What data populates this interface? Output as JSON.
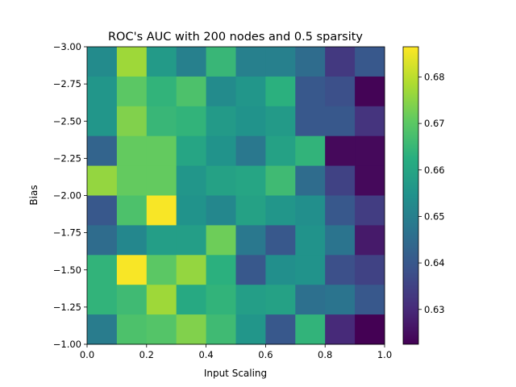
{
  "chart_data": {
    "type": "heatmap",
    "title": "ROC's AUC with 200 nodes and 0.5 sparsity",
    "xlabel": "Input Scaling",
    "ylabel": "Bias",
    "xlim": [
      0.0,
      1.0
    ],
    "ylim": [
      -1.0,
      -3.0
    ],
    "x_ticks": [
      "0.0",
      "0.2",
      "0.4",
      "0.6",
      "0.8",
      "1.0"
    ],
    "y_ticks": [
      "−3.00",
      "−2.75",
      "−2.50",
      "−2.25",
      "−2.00",
      "−1.75",
      "−1.50",
      "−1.25",
      "−1.00"
    ],
    "colorbar": {
      "min": 0.6225,
      "max": 0.6865,
      "ticks": [
        "0.63",
        "0.64",
        "0.65",
        "0.66",
        "0.67",
        "0.68"
      ],
      "tick_values": [
        0.63,
        0.64,
        0.65,
        0.66,
        0.67,
        0.68
      ],
      "colormap": "viridis"
    },
    "row_bias": [
      -2.9,
      -2.7,
      -2.5,
      -2.3,
      -2.1,
      -1.9,
      -1.7,
      -1.5,
      -1.3,
      -1.1
    ],
    "col_scaling": [
      0.05,
      0.15,
      0.25,
      0.35,
      0.45,
      0.55,
      0.65,
      0.75,
      0.85,
      0.95
    ],
    "values": [
      [
        0.653,
        0.677,
        0.657,
        0.65,
        0.665,
        0.65,
        0.65,
        0.645,
        0.633,
        0.64
      ],
      [
        0.656,
        0.67,
        0.664,
        0.668,
        0.653,
        0.656,
        0.663,
        0.64,
        0.638,
        0.623
      ],
      [
        0.656,
        0.674,
        0.665,
        0.664,
        0.657,
        0.655,
        0.657,
        0.64,
        0.64,
        0.632
      ],
      [
        0.643,
        0.671,
        0.671,
        0.66,
        0.655,
        0.648,
        0.659,
        0.664,
        0.624,
        0.624
      ],
      [
        0.676,
        0.671,
        0.671,
        0.656,
        0.659,
        0.66,
        0.666,
        0.645,
        0.635,
        0.624
      ],
      [
        0.64,
        0.668,
        0.686,
        0.655,
        0.652,
        0.659,
        0.656,
        0.654,
        0.64,
        0.634
      ],
      [
        0.645,
        0.652,
        0.658,
        0.658,
        0.672,
        0.648,
        0.64,
        0.655,
        0.647,
        0.627
      ],
      [
        0.664,
        0.686,
        0.67,
        0.676,
        0.663,
        0.64,
        0.654,
        0.655,
        0.638,
        0.635
      ],
      [
        0.664,
        0.666,
        0.677,
        0.661,
        0.664,
        0.658,
        0.659,
        0.646,
        0.647,
        0.64
      ],
      [
        0.649,
        0.668,
        0.669,
        0.674,
        0.666,
        0.656,
        0.64,
        0.664,
        0.63,
        0.622
      ]
    ]
  }
}
